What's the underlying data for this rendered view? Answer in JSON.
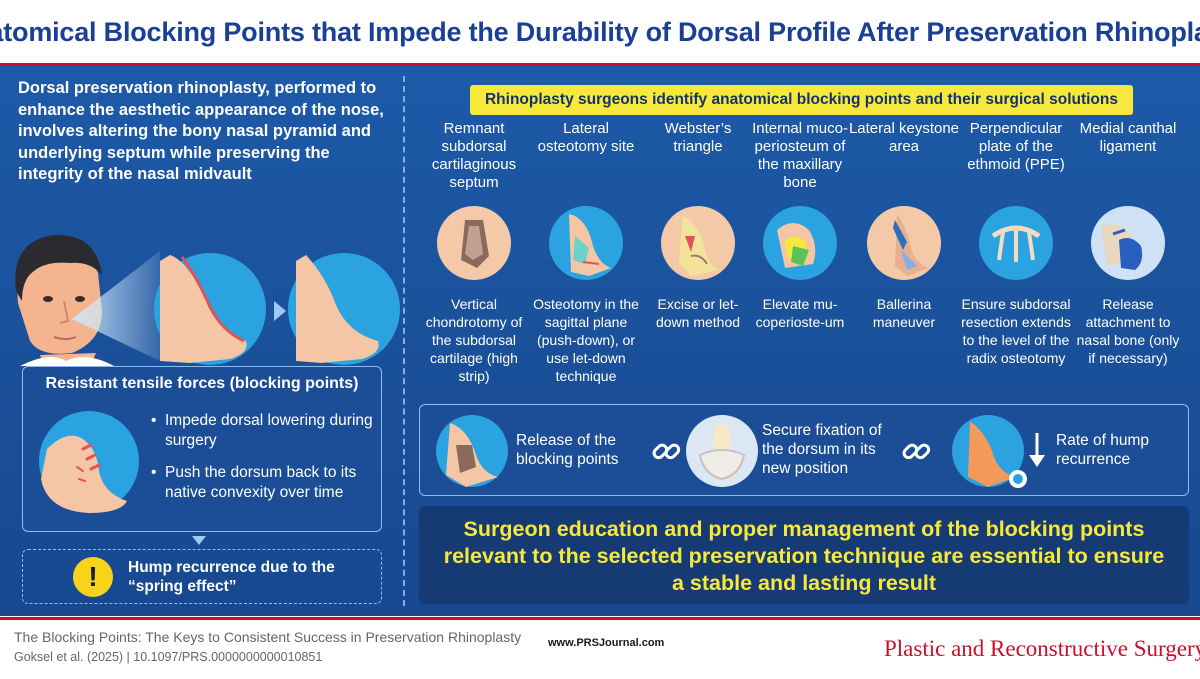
{
  "title": "Anatomical Blocking Points that Impede the Durability of Dorsal Profile After Preservation Rhinoplasty",
  "left": {
    "intro": "Dorsal preservation rhinoplasty, performed to enhance the aesthetic appearance of the nose, involves altering the bony nasal pyramid and underlying septum while preserving the integrity of the nasal midvault",
    "forces_title": "Resistant tensile forces (blocking points)",
    "forces_items": [
      "Impede dorsal lowering during surgery",
      "Push the dorsum back to its native convexity over time"
    ],
    "warning_symbol": "!",
    "hump_line1": "Hump recurrence due to the",
    "hump_line2": "“spring effect”"
  },
  "right": {
    "banner": "Rhinoplasty surgeons identify anatomical blocking points and their surgical solutions",
    "points": [
      {
        "name": "Remnant subdorsal cartilaginous septum",
        "solution": "Vertical chondrotomy of the subdorsal cartilage (high strip)",
        "icon": "septum-cartilage-icon"
      },
      {
        "name": "Lateral osteotomy site",
        "solution": "Osteotomy in the sagittal plane (push-down), or use let-down technique",
        "icon": "lateral-osteotomy-icon"
      },
      {
        "name": "Webster’s triangle",
        "solution": "Excise or let-down method",
        "icon": "websters-triangle-icon"
      },
      {
        "name": "Internal muco-periosteum of the maxillary bone",
        "solution": "Elevate mu-coperioste-um",
        "icon": "maxillary-mucoperiosteum-icon"
      },
      {
        "name": "Lateral keystone area",
        "solution": "Ballerina maneuver",
        "icon": "keystone-area-icon"
      },
      {
        "name": "Perpendicular plate of the ethmoid (PPE)",
        "solution": "Ensure subdorsal resection extends to the level of the radix osteotomy",
        "icon": "ethmoid-plate-icon"
      },
      {
        "name": "Medial canthal ligament",
        "solution": "Release attachment to nasal bone (only if necessary)",
        "icon": "canthal-ligament-icon"
      }
    ],
    "flow": {
      "step1_line1": "Release of the",
      "step1_line2": "blocking points",
      "step2_line1": "Secure fixation of",
      "step2_line2": "the dorsum in its",
      "step2_line3": "new position",
      "step3_line1": "Rate of hump",
      "step3_line2": "recurrence"
    },
    "conclusion": "Surgeon education and proper management of the blocking points relevant to the selected preservation technique are essential to ensure a stable and lasting result"
  },
  "footer": {
    "citation_title": "The Blocking Points: The Keys to Consistent Success in Preservation Rhinoplasty",
    "citation_ref": "Goksel et al. (2025) | 10.1097/PRS.0000000000010851",
    "url": "www.PRSJournal.com",
    "journal": "Plastic and Reconstructive Surgery",
    "journal_mark": "®"
  },
  "colors": {
    "title_blue": "#1b3f95",
    "panel_blue": "#1d5aa8",
    "accent_red": "#c8102e",
    "highlight_yellow": "#f7e93b",
    "icon_bg_blue": "#2aa3e0"
  }
}
